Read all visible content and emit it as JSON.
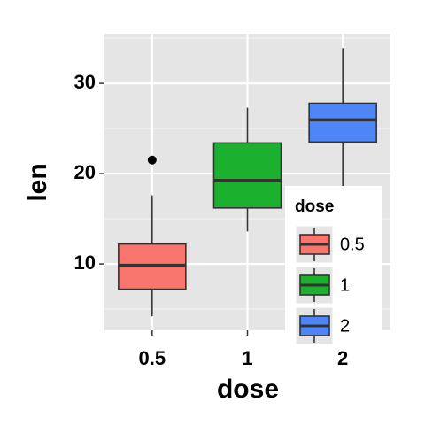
{
  "chart_data": {
    "type": "box",
    "xlabel": "dose",
    "ylabel": "len",
    "categories": [
      "0.5",
      "1",
      "2"
    ],
    "colors": [
      "#f8766d",
      "#1bb02e",
      "#4f86f7"
    ],
    "min": [
      4.2,
      13.6,
      18.5
    ],
    "q1": [
      7.2,
      16.2,
      23.5
    ],
    "median": [
      9.85,
      19.25,
      25.95
    ],
    "q3": [
      12.2,
      23.4,
      27.8
    ],
    "max": [
      17.6,
      27.3,
      33.9
    ],
    "outliers": [
      [
        21.5
      ],
      [],
      []
    ],
    "ylim": [
      2.65,
      35.5
    ],
    "yticks": [
      10,
      20,
      30
    ],
    "minor_yticks": [
      5,
      15,
      25,
      35
    ],
    "grid": true,
    "legend_title": "dose",
    "legend_position": "bottom-right"
  }
}
